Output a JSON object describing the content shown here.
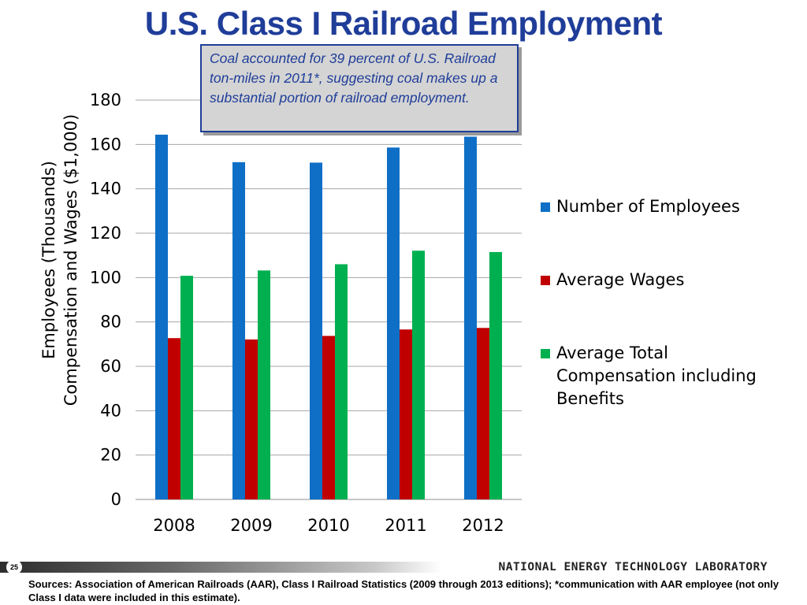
{
  "slide": {
    "title": "U.S. Class I Railroad Employment",
    "callout": "Coal accounted for 39 percent of U.S. Railroad ton-miles in 2011*, suggesting coal makes up a substantial portion of railroad employment.",
    "page_number": "25",
    "organization": "NATIONAL ENERGY TECHNOLOGY LABORATORY",
    "sources": "Sources: Association of American Railroads (AAR), Class I Railroad Statistics (2009 through 2013 editions); *communication with AAR employee (not only Class I data were included in this estimate)."
  },
  "chart_data": {
    "type": "bar",
    "title": "U.S. Class I Railroad Employment",
    "xlabel": "",
    "ylabel_line1": "Employees (Thousands)",
    "ylabel_line2": "Compensation and Wages ($1,000)",
    "ylim": [
      0,
      180
    ],
    "yticks": [
      0,
      20,
      40,
      60,
      80,
      100,
      120,
      140,
      160,
      180
    ],
    "grid": true,
    "legend_position": "right",
    "categories": [
      "2008",
      "2009",
      "2010",
      "2011",
      "2012"
    ],
    "series": [
      {
        "name": "Number of Employees",
        "color": "#0f6fc6",
        "values": [
          164.4,
          152.0,
          151.8,
          158.6,
          163.5
        ]
      },
      {
        "name": "Average Wages",
        "color": "#c00000",
        "values": [
          72.7,
          72.1,
          73.7,
          76.6,
          77.3
        ]
      },
      {
        "name": "Average Total Compensation including Benefits",
        "color": "#00b050",
        "values": [
          100.8,
          103.2,
          106.0,
          112.1,
          111.5
        ]
      }
    ]
  }
}
